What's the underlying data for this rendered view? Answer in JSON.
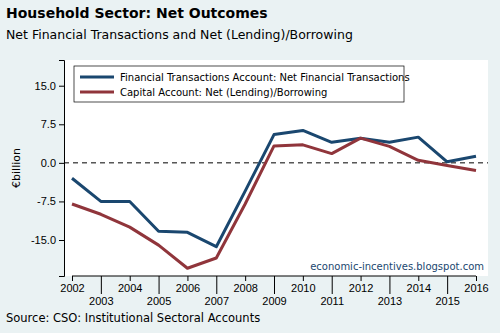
{
  "chart_data": {
    "type": "line",
    "title": "Household Sector: Net Outcomes",
    "subtitle": "Net Financial Transactions and Net (Lending)/Borrowing",
    "y_label": "€billion",
    "annotation": "economic-incentives.blogspot.com",
    "source": "Source: CSO: Institutional Sectoral Accounts",
    "x": [
      2002,
      2003,
      2004,
      2005,
      2006,
      2007,
      2008,
      2009,
      2010,
      2011,
      2012,
      2013,
      2014,
      2015,
      2016
    ],
    "series": [
      {
        "name": "Financial Transactions Account: Net Financial Transactions",
        "color": "#1a476f",
        "values": [
          -3,
          -7.5,
          -7.5,
          -13.3,
          -13.5,
          -16.3,
          -5.5,
          5.5,
          6.3,
          4,
          4.8,
          4,
          5,
          0.2,
          1.3
        ]
      },
      {
        "name": "Capital Account: Net (Lending)/Borrowing",
        "color": "#90353b",
        "values": [
          -8,
          -10,
          -12.5,
          -16,
          -20.5,
          -18.5,
          -8,
          3.3,
          3.5,
          1.8,
          4.8,
          3.2,
          0.5,
          -0.5,
          -1.5
        ]
      }
    ],
    "xlim": [
      2002,
      2016
    ],
    "xticks": [
      2002,
      2003,
      2004,
      2005,
      2006,
      2007,
      2008,
      2009,
      2010,
      2011,
      2012,
      2013,
      2014,
      2015,
      2016
    ],
    "ylim": [
      -22,
      20
    ],
    "yticks": [
      {
        "value": -15,
        "label": "-15.0"
      },
      {
        "value": -7.5,
        "label": "-7.5"
      },
      {
        "value": 0,
        "label": "0.0"
      },
      {
        "value": 7.5,
        "label": "7.5"
      },
      {
        "value": 15,
        "label": "15.0"
      }
    ],
    "reference_lines": [
      0
    ],
    "legend": "top-left",
    "grid": false
  }
}
